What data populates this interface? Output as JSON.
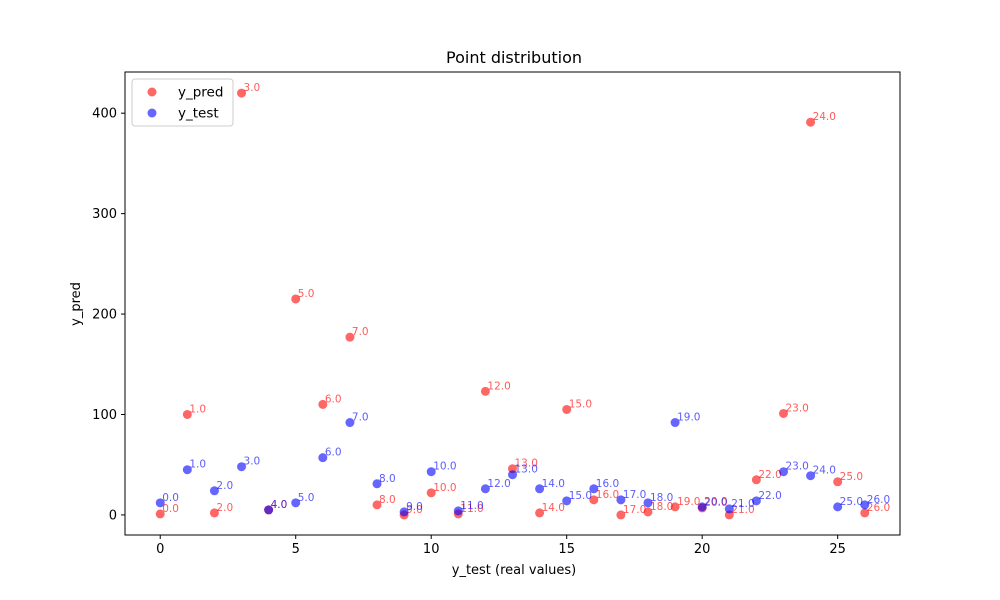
{
  "chart_data": {
    "type": "scatter",
    "title": "Point distribution",
    "xlabel": "y_test (real values)",
    "ylabel": "y_pred",
    "xlim": [
      -1.3,
      27.3
    ],
    "ylim": [
      -20,
      441
    ],
    "xticks": [
      0,
      5,
      10,
      15,
      20,
      25
    ],
    "yticks": [
      0,
      100,
      200,
      300,
      400
    ],
    "grid": false,
    "legend_position": "top-left",
    "series": [
      {
        "name": "y_pred",
        "color": "#ff0000",
        "points": [
          {
            "x": 0,
            "y": 1,
            "label": "0.0"
          },
          {
            "x": 1,
            "y": 100,
            "label": "1.0"
          },
          {
            "x": 2,
            "y": 2,
            "label": "2.0"
          },
          {
            "x": 3,
            "y": 420,
            "label": "3.0"
          },
          {
            "x": 4,
            "y": 5,
            "label": "4.0"
          },
          {
            "x": 5,
            "y": 215,
            "label": "5.0"
          },
          {
            "x": 6,
            "y": 110,
            "label": "6.0"
          },
          {
            "x": 7,
            "y": 177,
            "label": "7.0"
          },
          {
            "x": 8,
            "y": 10,
            "label": "8.0"
          },
          {
            "x": 9,
            "y": 0,
            "label": "9.0"
          },
          {
            "x": 10,
            "y": 22,
            "label": "10.0"
          },
          {
            "x": 11,
            "y": 1,
            "label": "11.0"
          },
          {
            "x": 12,
            "y": 123,
            "label": "12.0"
          },
          {
            "x": 13,
            "y": 46,
            "label": "13.0"
          },
          {
            "x": 14,
            "y": 2,
            "label": "14.0"
          },
          {
            "x": 15,
            "y": 105,
            "label": "15.0"
          },
          {
            "x": 16,
            "y": 15,
            "label": "16.0"
          },
          {
            "x": 17,
            "y": 0,
            "label": "17.0"
          },
          {
            "x": 18,
            "y": 3,
            "label": "18.0"
          },
          {
            "x": 19,
            "y": 8,
            "label": "19.0"
          },
          {
            "x": 20,
            "y": 7,
            "label": "20.0"
          },
          {
            "x": 21,
            "y": 0,
            "label": "21.0"
          },
          {
            "x": 22,
            "y": 35,
            "label": "22.0"
          },
          {
            "x": 23,
            "y": 101,
            "label": "23.0"
          },
          {
            "x": 24,
            "y": 391,
            "label": "24.0"
          },
          {
            "x": 25,
            "y": 33,
            "label": "25.0"
          },
          {
            "x": 26,
            "y": 2,
            "label": "26.0"
          }
        ]
      },
      {
        "name": "y_test",
        "color": "#0000ff",
        "points": [
          {
            "x": 0,
            "y": 12,
            "label": "0.0"
          },
          {
            "x": 1,
            "y": 45,
            "label": "1.0"
          },
          {
            "x": 2,
            "y": 24,
            "label": "2.0"
          },
          {
            "x": 3,
            "y": 48,
            "label": "3.0"
          },
          {
            "x": 4,
            "y": 5,
            "label": "4.0"
          },
          {
            "x": 5,
            "y": 12,
            "label": "5.0"
          },
          {
            "x": 6,
            "y": 57,
            "label": "6.0"
          },
          {
            "x": 7,
            "y": 92,
            "label": "7.0"
          },
          {
            "x": 8,
            "y": 31,
            "label": "8.0"
          },
          {
            "x": 9,
            "y": 3,
            "label": "9.0"
          },
          {
            "x": 10,
            "y": 43,
            "label": "10.0"
          },
          {
            "x": 11,
            "y": 4,
            "label": "11.0"
          },
          {
            "x": 12,
            "y": 26,
            "label": "12.0"
          },
          {
            "x": 13,
            "y": 40,
            "label": "13.0"
          },
          {
            "x": 14,
            "y": 26,
            "label": "14.0"
          },
          {
            "x": 15,
            "y": 14,
            "label": "15.0"
          },
          {
            "x": 16,
            "y": 26,
            "label": "16.0"
          },
          {
            "x": 17,
            "y": 15,
            "label": "17.0"
          },
          {
            "x": 18,
            "y": 12,
            "label": "18.0"
          },
          {
            "x": 19,
            "y": 92,
            "label": "19.0"
          },
          {
            "x": 20,
            "y": 8,
            "label": "20.0"
          },
          {
            "x": 21,
            "y": 6,
            "label": "21.0"
          },
          {
            "x": 22,
            "y": 14,
            "label": "22.0"
          },
          {
            "x": 23,
            "y": 43,
            "label": "23.0"
          },
          {
            "x": 24,
            "y": 39,
            "label": "24.0"
          },
          {
            "x": 25,
            "y": 8,
            "label": "25.0"
          },
          {
            "x": 26,
            "y": 10,
            "label": "26.0"
          }
        ]
      }
    ]
  }
}
